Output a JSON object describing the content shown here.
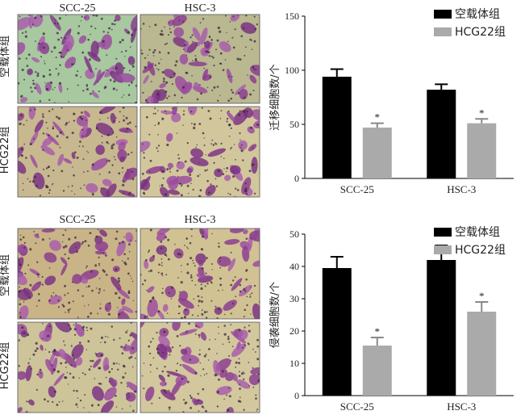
{
  "micrographs": {
    "top": {
      "columns": [
        "SCC-25",
        "HSC-3"
      ],
      "rows": [
        "空载体组",
        "HCG22组"
      ],
      "background_colors": [
        "#a8c8a0",
        "#b9b890",
        "#c8b890",
        "#d2c79c"
      ]
    },
    "bottom": {
      "columns": [
        "SCC-25",
        "HSC-3"
      ],
      "rows": [
        "空载体组",
        "HCG22组"
      ],
      "background_colors": [
        "#c9b488",
        "#d1c294",
        "#cdc49a",
        "#d3c79e"
      ]
    }
  },
  "chart_data": [
    {
      "type": "bar",
      "categories": [
        "SCC-25",
        "HSC-3"
      ],
      "series": [
        {
          "name": "空载体组",
          "values": [
            94,
            82
          ],
          "errors": [
            7,
            5
          ],
          "color": "#000000"
        },
        {
          "name": "HCG22组",
          "values": [
            47,
            51
          ],
          "errors": [
            4,
            4
          ],
          "color": "#aaaaaa"
        }
      ],
      "significance": [
        [
          "",
          ""
        ],
        [
          "*",
          "*"
        ]
      ],
      "ylabel": "迁移细胞数/个",
      "ylim": [
        0,
        150
      ],
      "yticks": [
        0,
        50,
        100,
        150
      ],
      "legend_position": "top-right"
    },
    {
      "type": "bar",
      "categories": [
        "SCC-25",
        "HSC-3"
      ],
      "series": [
        {
          "name": "空载体组",
          "values": [
            39.5,
            42
          ],
          "errors": [
            3.5,
            4.5
          ],
          "color": "#000000"
        },
        {
          "name": "HCG22组",
          "values": [
            15.5,
            26
          ],
          "errors": [
            2.5,
            3
          ],
          "color": "#aaaaaa"
        }
      ],
      "significance": [
        [
          "",
          ""
        ],
        [
          "*",
          "*"
        ]
      ],
      "ylabel": "侵袭细胞数/个",
      "ylim": [
        0,
        50
      ],
      "yticks": [
        0,
        10,
        20,
        30,
        40,
        50
      ],
      "legend_position": "top-right"
    }
  ]
}
